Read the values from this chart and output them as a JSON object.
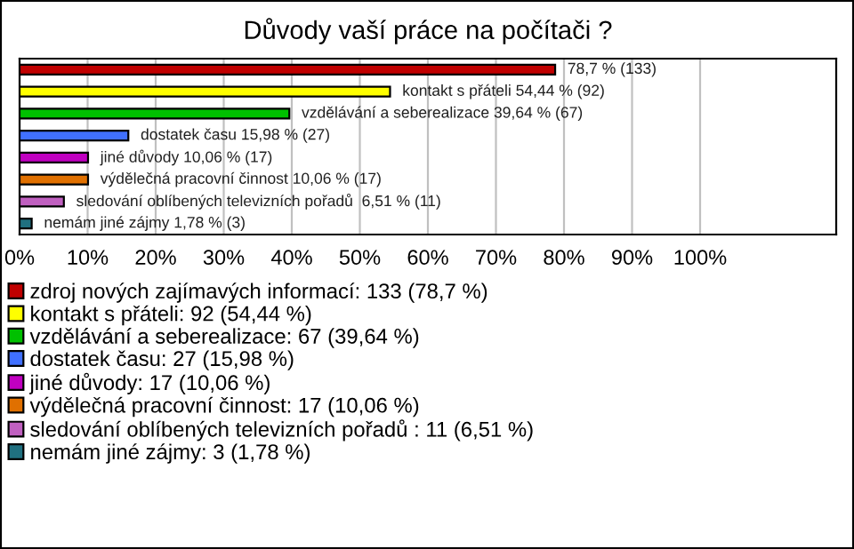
{
  "chart_data": {
    "type": "bar",
    "orientation": "horizontal",
    "title": "Důvody vaší práce na počítači ?",
    "categories": [
      null,
      null,
      null,
      null,
      null,
      null,
      null,
      null
    ],
    "series": [
      {
        "name": "zdroj nových zajímavých informací: 133 (78,7 %)",
        "color": "#c00000",
        "values": [
          78.7,
          null,
          null,
          null,
          null,
          null,
          null,
          null
        ],
        "value_labels": [
          "78,7 % (133)",
          null,
          null,
          null,
          null,
          null,
          null,
          null
        ]
      },
      {
        "name": "kontakt s přáteli: 92 (54,44 %)",
        "color": "#ffff00",
        "values": [
          null,
          54.44,
          null,
          null,
          null,
          null,
          null,
          null
        ],
        "value_labels": [
          null,
          "kontakt s přáteli 54,44 % (92)",
          null,
          null,
          null,
          null,
          null,
          null
        ]
      },
      {
        "name": "vzdělávání a seberealizace: 67 (39,64 %)",
        "color": "#00c000",
        "values": [
          null,
          null,
          39.64,
          null,
          null,
          null,
          null,
          null
        ],
        "value_labels": [
          null,
          null,
          "vzdělávání a seberealizace 39,64 % (67)",
          null,
          null,
          null,
          null,
          null
        ]
      },
      {
        "name": "dostatek času: 27 (15,98 %)",
        "color": "#4070ff",
        "values": [
          null,
          null,
          null,
          15.98,
          null,
          null,
          null,
          null
        ],
        "value_labels": [
          null,
          null,
          null,
          "dostatek času 15,98 % (27)",
          null,
          null,
          null,
          null
        ]
      },
      {
        "name": "jiné důvody: 17 (10,06 %)",
        "color": "#c000c0",
        "values": [
          null,
          null,
          null,
          null,
          10.06,
          null,
          null,
          null
        ],
        "value_labels": [
          null,
          null,
          null,
          null,
          "jiné důvody 10,06 % (17)",
          null,
          null,
          null
        ]
      },
      {
        "name": "výdělečná pracovní činnost: 17 (10,06 %)",
        "color": "#e07000",
        "values": [
          null,
          null,
          null,
          null,
          null,
          10.06,
          null,
          null
        ],
        "value_labels": [
          null,
          null,
          null,
          null,
          null,
          "výdělečná pracovní činnost 10,06 % (17)",
          null,
          null
        ]
      },
      {
        "name": "sledování oblíbených televizních pořadů : 11 (6,51 %)",
        "color": "#c060c0",
        "values": [
          null,
          null,
          null,
          null,
          null,
          null,
          6.51,
          null
        ],
        "value_labels": [
          null,
          null,
          null,
          null,
          null,
          null,
          "sledování oblíbených televizních pořadů  6,51 % (11)",
          null
        ]
      },
      {
        "name": "nemám jiné zájmy: 3 (1,78 %)",
        "color": "#207080",
        "values": [
          null,
          null,
          null,
          null,
          null,
          null,
          null,
          1.78
        ],
        "value_labels": [
          null,
          null,
          null,
          null,
          null,
          null,
          null,
          "nemám jiné zájmy 1,78 % (3)"
        ]
      }
    ],
    "xlim": [
      0,
      120
    ],
    "xticks": [
      {
        "value": 0,
        "label": "0%"
      },
      {
        "value": 10,
        "label": "10%"
      },
      {
        "value": 20,
        "label": "20%"
      },
      {
        "value": 30,
        "label": "30%"
      },
      {
        "value": 40,
        "label": "40%"
      },
      {
        "value": 50,
        "label": "50%"
      },
      {
        "value": 60,
        "label": "60%"
      },
      {
        "value": 70,
        "label": "70%"
      },
      {
        "value": 80,
        "label": "80%"
      },
      {
        "value": 90,
        "label": "90%"
      },
      {
        "value": 100,
        "label": "100%"
      }
    ],
    "grid": "x",
    "legend": "bottom"
  }
}
